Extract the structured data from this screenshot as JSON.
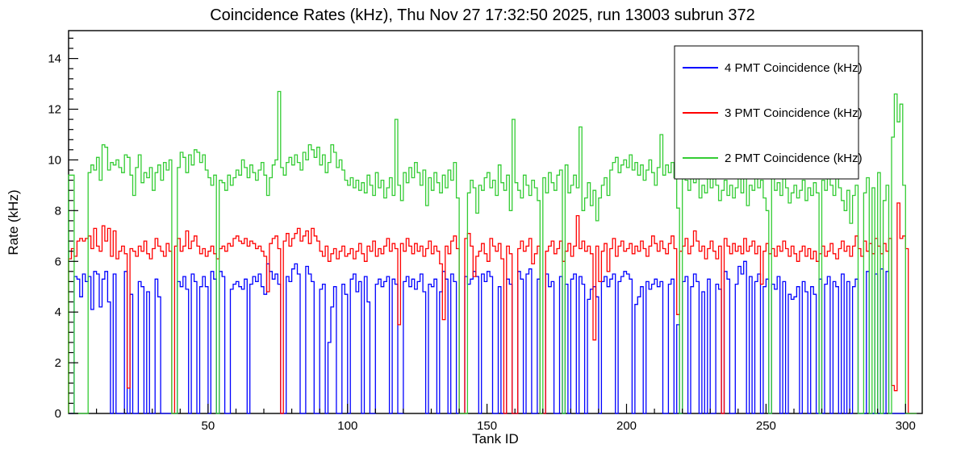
{
  "title": "Coincidence Rates (kHz), Thu Nov 27 17:32:50 2025, run 13003 subrun 372",
  "chart_data": {
    "type": "line",
    "style": "step-histogram",
    "title": "Coincidence Rates (kHz), Thu Nov 27 17:32:50 2025, run 13003 subrun 372",
    "xlabel": "Tank ID",
    "ylabel": "Rate (kHz)",
    "xlim": [
      0,
      306
    ],
    "ylim": [
      0,
      15.1
    ],
    "x_major_ticks": [
      50,
      100,
      150,
      200,
      250,
      300
    ],
    "x_minor_step": 10,
    "y_major_ticks": [
      0,
      2,
      4,
      6,
      8,
      10,
      12,
      14
    ],
    "y_minor_step": 0.4,
    "grid": false,
    "legend_position": "top-right",
    "frame_color": "#000000",
    "background_color": "#ffffff",
    "series": [
      {
        "name": "4 PMT Coincidence (kHz)",
        "color": "#0000ff",
        "values": [
          0,
          0,
          5.4,
          5.3,
          4.6,
          5.5,
          5.2,
          5.4,
          4.1,
          5.6,
          5.5,
          4.2,
          5.3,
          5.6,
          4.4,
          0,
          5.5,
          0,
          0,
          0,
          5.6,
          0,
          4.7,
          0,
          0,
          5.2,
          5.0,
          0,
          4.8,
          0,
          0,
          5.3,
          4.6,
          0,
          0,
          0,
          0,
          0,
          0,
          5.2,
          5.0,
          5.4,
          4.9,
          0,
          5.5,
          5.2,
          0,
          5.0,
          5.4,
          5.0,
          0,
          5.6,
          5.3,
          0,
          5.6,
          5.4,
          0,
          0,
          4.9,
          5.1,
          5.2,
          5.0,
          4.9,
          5.3,
          0,
          5.1,
          5.4,
          5.2,
          5.5,
          5.0,
          4.7,
          5.9,
          5.6,
          5.3,
          5.5,
          5.1,
          0,
          0,
          5.4,
          5.2,
          5.7,
          5.9,
          5.5,
          0,
          0,
          5.8,
          5.5,
          5.2,
          0,
          0,
          4.9,
          5.1,
          0,
          2.8,
          4.2,
          5.0,
          0,
          0,
          5.1,
          4.7,
          0,
          5.3,
          5.5,
          4.8,
          5.2,
          0,
          5.4,
          4.4,
          0,
          0,
          5.1,
          5.3,
          5.0,
          5.2,
          5.4,
          0,
          5.3,
          5.1,
          0,
          0,
          5.2,
          5.4,
          5.0,
          5.3,
          4.9,
          5.2,
          5.5,
          4.8,
          0,
          5.1,
          5.0,
          5.3,
          0,
          4.8,
          5.6,
          5.3,
          0,
          5.5,
          5.2,
          0,
          0,
          0,
          5.4,
          5.1,
          5.3,
          5.6,
          5.4,
          0,
          5.5,
          5.2,
          5.6,
          5.4,
          0,
          0,
          5.0,
          0,
          0,
          5.3,
          5.1,
          0,
          0,
          5.6,
          5.3,
          0,
          5.5,
          5.7,
          0,
          0,
          5.3,
          0,
          0,
          5.5,
          5.0,
          5.2,
          0,
          0,
          5.4,
          0,
          5.1,
          0,
          5.3,
          5.5,
          0,
          5.4,
          5.1,
          0,
          4.5,
          4.9,
          5.0,
          4.6,
          0,
          5.2,
          5.4,
          5.0,
          5.3,
          5.5,
          0,
          5.2,
          5.4,
          5.6,
          5.5,
          5.3,
          0,
          4.3,
          4.6,
          5.0,
          0,
          5.2,
          4.9,
          5.1,
          5.3,
          5.0,
          5.2,
          0,
          0,
          5.1,
          5.3,
          0,
          3.5,
          0,
          5.2,
          5.4,
          0,
          5.0,
          5.5,
          5.2,
          0,
          4.8,
          0,
          5.3,
          0,
          0,
          5.1,
          4.9,
          0,
          5.6,
          5.3,
          0,
          0,
          5.1,
          5.8,
          5.5,
          6.0,
          0,
          5.4,
          0,
          5.2,
          5.5,
          0,
          5.0,
          5.3,
          0,
          5.1,
          4.9,
          5.4,
          0,
          5.2,
          0,
          4.7,
          4.5,
          4.6,
          5.0,
          0,
          5.2,
          4.8,
          0,
          5.0,
          4.7,
          0,
          5.3,
          0,
          5.1,
          5.4,
          0,
          5.2,
          5.0,
          0,
          5.5,
          0,
          5.2,
          0,
          5.0,
          5.3,
          0,
          0,
          0,
          5.6,
          0,
          0,
          5.5,
          0,
          5.7,
          0,
          5.6,
          0,
          0,
          0,
          0,
          0,
          0,
          0,
          0,
          0,
          0
        ]
      },
      {
        "name": "3 PMT Coincidence (kHz)",
        "color": "#ff0000",
        "values": [
          6.1,
          6.5,
          6.2,
          6.8,
          6.9,
          6.8,
          6.9,
          7.0,
          6.5,
          7.3,
          6.6,
          6.4,
          7.4,
          6.8,
          7.3,
          6.2,
          7.2,
          6.1,
          6.4,
          6.6,
          6.3,
          1.0,
          6.5,
          6.4,
          6.2,
          6.6,
          6.4,
          6.8,
          6.3,
          6.1,
          6.5,
          6.9,
          6.6,
          6.4,
          6.2,
          6.7,
          6.4,
          0,
          6.6,
          6.9,
          6.4,
          6.6,
          7.2,
          6.5,
          6.8,
          7.0,
          6.6,
          6.3,
          6.5,
          6.2,
          6.4,
          6.6,
          6.3,
          6.1,
          6.5,
          6.6,
          6.4,
          6.7,
          6.6,
          6.9,
          7.0,
          6.8,
          6.7,
          6.9,
          6.6,
          6.8,
          6.7,
          6.5,
          6.6,
          6.4,
          6.2,
          4.8,
          6.7,
          6.9,
          7.0,
          6.5,
          0,
          6.8,
          7.1,
          6.6,
          6.9,
          7.1,
          7.3,
          6.8,
          7.0,
          7.2,
          6.7,
          7.3,
          7.0,
          6.8,
          6.4,
          6.2,
          6.6,
          6.0,
          6.3,
          6.5,
          6.1,
          6.4,
          6.6,
          6.2,
          6.3,
          6.5,
          6.1,
          6.4,
          6.7,
          6.3,
          6.0,
          6.6,
          6.4,
          6.8,
          6.2,
          6.5,
          6.3,
          6.6,
          6.9,
          6.4,
          6.7,
          6.5,
          3.5,
          6.7,
          6.4,
          6.9,
          6.6,
          6.3,
          6.7,
          6.4,
          6.6,
          6.2,
          6.5,
          6.8,
          6.3,
          6.6,
          6.4,
          5.9,
          3.7,
          6.6,
          6.3,
          6.8,
          7.0,
          6.5,
          0,
          0,
          6.9,
          7.1,
          6.6,
          5.4,
          6.2,
          6.4,
          6.7,
          6.3,
          6.0,
          6.9,
          6.6,
          6.4,
          6.7,
          6.1,
          0,
          6.6,
          6.3,
          0,
          0,
          6.5,
          6.8,
          6.4,
          6.6,
          6.9,
          5.9,
          6.3,
          6.6,
          0,
          0,
          6.4,
          6.6,
          6.8,
          6.3,
          6.5,
          6.8,
          6.0,
          6.4,
          6.7,
          6.2,
          6.6,
          7.8,
          6.5,
          6.8,
          6.4,
          6.6,
          6.3,
          2.9,
          6.6,
          5.2,
          6.4,
          6.7,
          5.6,
          6.5,
          6.9,
          6.2,
          6.6,
          6.8,
          6.4,
          6.5,
          6.7,
          6.3,
          6.6,
          6.4,
          6.8,
          6.5,
          6.2,
          6.6,
          7.0,
          6.7,
          6.4,
          6.8,
          6.5,
          6.3,
          6.7,
          7.0,
          6.5,
          3.9,
          6.4,
          6.6,
          6.9,
          6.3,
          6.6,
          7.2,
          6.8,
          6.4,
          6.6,
          6.1,
          6.5,
          6.8,
          6.4,
          6.1,
          6.6,
          0,
          6.9,
          6.6,
          6.3,
          6.7,
          6.4,
          6.6,
          6.3,
          6.9,
          6.4,
          6.6,
          6.8,
          6.3,
          6.6,
          5.1,
          6.4,
          6.7,
          6.3,
          6.5,
          6.2,
          6.6,
          6.4,
          6.8,
          6.5,
          6.2,
          6.6,
          6.3,
          6.0,
          6.4,
          6.6,
          6.2,
          6.5,
          6.1,
          6.4,
          6.0,
          6.3,
          6.6,
          6.2,
          6.4,
          6.7,
          6.3,
          6.1,
          6.5,
          6.8,
          6.4,
          6.6,
          6.2,
          6.6,
          7.0,
          6.5,
          6.2,
          6.8,
          6.4,
          6.7,
          6.3,
          6.9,
          6.6,
          6.3,
          6.7,
          6.4,
          6.9,
          1.1,
          0.9,
          8.3,
          6.9,
          7.0,
          6.5,
          0,
          0,
          0
        ]
      },
      {
        "name": "2 PMT Coincidence (kHz)",
        "color": "#33cc33",
        "values": [
          9.4,
          9.4,
          0,
          0,
          0,
          0,
          0,
          9.5,
          9.8,
          9.6,
          10.1,
          9.2,
          10.6,
          10.5,
          9.6,
          9.9,
          9.8,
          10.0,
          9.7,
          9.5,
          10.2,
          10.1,
          9.4,
          8.6,
          9.7,
          10.2,
          9.1,
          9.5,
          9.3,
          9.7,
          8.8,
          9.5,
          9.8,
          9.2,
          9.9,
          9.6,
          10.0,
          0,
          0,
          9.7,
          10.3,
          10.1,
          9.5,
          10.2,
          9.8,
          10.4,
          10.3,
          9.9,
          10.2,
          9.6,
          9.3,
          9.0,
          9.4,
          0,
          9.2,
          9.1,
          8.8,
          9.4,
          9.0,
          9.3,
          9.6,
          9.4,
          10.0,
          9.7,
          9.3,
          9.8,
          9.5,
          9.2,
          9.6,
          9.9,
          9.4,
          8.6,
          9.3,
          9.8,
          10.0,
          12.7,
          9.7,
          9.4,
          9.9,
          10.1,
          9.8,
          10.2,
          9.9,
          9.6,
          10.3,
          10.0,
          10.6,
          10.4,
          10.1,
          10.5,
          9.8,
          10.2,
          9.5,
          9.9,
          10.6,
          10.3,
          9.7,
          10.0,
          9.6,
          9.2,
          9.0,
          9.3,
          8.9,
          9.2,
          8.8,
          9.1,
          8.7,
          9.4,
          9.0,
          8.6,
          9.5,
          8.9,
          9.2,
          8.5,
          8.9,
          9.3,
          8.6,
          11.6,
          9.0,
          8.4,
          9.5,
          9.1,
          9.7,
          9.3,
          9.9,
          9.5,
          9.0,
          9.6,
          8.2,
          9.3,
          8.8,
          9.5,
          9.1,
          8.7,
          9.4,
          8.9,
          9.6,
          9.2,
          9.9,
          8.5,
          0,
          0,
          0,
          8.7,
          9.2,
          8.9,
          7.9,
          9.0,
          8.8,
          9.3,
          9.5,
          8.9,
          9.2,
          8.6,
          9.8,
          9.1,
          8.8,
          9.4,
          8.0,
          11.6,
          9.1,
          8.8,
          8.5,
          9.4,
          9.0,
          8.6,
          9.2,
          8.9,
          8.4,
          0,
          9.3,
          8.7,
          9.5,
          9.1,
          8.8,
          9.4,
          9.6,
          0,
          9.8,
          8.7,
          9.0,
          9.4,
          8.9,
          11.3,
          8.0,
          8.5,
          9.1,
          8.2,
          8.8,
          7.6,
          8.5,
          9.0,
          9.3,
          8.6,
          9.6,
          9.9,
          10.1,
          9.5,
          9.8,
          10.0,
          9.7,
          10.2,
          9.6,
          9.9,
          9.4,
          9.8,
          9.2,
          9.6,
          10.0,
          9.5,
          9.0,
          9.7,
          11.0,
          9.4,
          9.8,
          9.5,
          9.9,
          9.3,
          8.1,
          0,
          9.6,
          9.2,
          8.8,
          9.4,
          9.1,
          9.6,
          8.5,
          9.0,
          8.7,
          9.3,
          8.9,
          9.5,
          9.0,
          8.4,
          8.8,
          9.2,
          8.6,
          9.0,
          8.5,
          8.9,
          9.3,
          8.7,
          9.6,
          8.2,
          9.0,
          8.8,
          9.4,
          8.9,
          9.2,
          8.5,
          8.0,
          0,
          9.4,
          8.8,
          9.1,
          8.6,
          9.5,
          8.9,
          8.3,
          8.7,
          9.0,
          8.5,
          8.8,
          9.2,
          8.4,
          8.9,
          8.6,
          9.1,
          8.7,
          0,
          9.2,
          8.8,
          9.4,
          9.0,
          8.6,
          9.3,
          8.9,
          8.4,
          8.0,
          8.8,
          7.5,
          8.6,
          9.0,
          0,
          0,
          8.7,
          9.3,
          0,
          8.9,
          0,
          9.5,
          0,
          8.4,
          9.0,
          0,
          10.9,
          12.6,
          11.5,
          12.2,
          9.0,
          0,
          0,
          0,
          0
        ]
      }
    ]
  }
}
